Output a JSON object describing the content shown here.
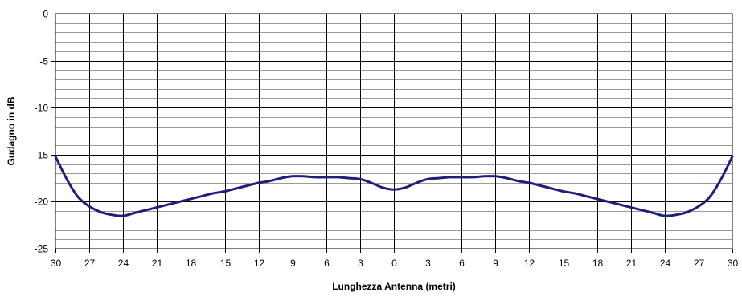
{
  "chart_data": {
    "type": "line",
    "title": "",
    "xlabel": "Lunghezza Antenna (metri)",
    "ylabel": "Gudagno in dB",
    "x_tick_labels": [
      "30",
      "27",
      "24",
      "21",
      "18",
      "15",
      "12",
      "9",
      "6",
      "3",
      "0",
      "3",
      "6",
      "9",
      "12",
      "15",
      "18",
      "21",
      "24",
      "27",
      "30"
    ],
    "y_ticks": [
      0,
      -5,
      -10,
      -15,
      -20,
      -25
    ],
    "ylim": [
      -25,
      0
    ],
    "grid": {
      "major": true,
      "minor": true,
      "minor_step": 1
    },
    "legend": "none",
    "series": [
      {
        "color": "#1F1F7A",
        "x": [
          -30,
          -29,
          -28,
          -27,
          -26,
          -25,
          -24,
          -23,
          -22,
          -21,
          -20,
          -19,
          -18,
          -17,
          -16,
          -15,
          -14,
          -13,
          -12,
          -11,
          -10,
          -9,
          -8,
          -7,
          -6,
          -5,
          -4,
          -3,
          -2,
          -1,
          0,
          1,
          2,
          3,
          4,
          5,
          6,
          7,
          8,
          9,
          10,
          11,
          12,
          13,
          14,
          15,
          16,
          17,
          18,
          19,
          20,
          21,
          22,
          23,
          24,
          25,
          26,
          27,
          28,
          29,
          30
        ],
        "values": [
          -15.2,
          -17.6,
          -19.5,
          -20.5,
          -21.1,
          -21.4,
          -21.5,
          -21.2,
          -20.9,
          -20.6,
          -20.3,
          -20.0,
          -19.7,
          -19.4,
          -19.1,
          -18.9,
          -18.6,
          -18.3,
          -18.0,
          -17.8,
          -17.5,
          -17.3,
          -17.3,
          -17.4,
          -17.4,
          -17.4,
          -17.5,
          -17.6,
          -18.0,
          -18.5,
          -18.7,
          -18.5,
          -18.0,
          -17.6,
          -17.5,
          -17.4,
          -17.4,
          -17.4,
          -17.3,
          -17.3,
          -17.5,
          -17.8,
          -18.0,
          -18.3,
          -18.6,
          -18.9,
          -19.1,
          -19.4,
          -19.7,
          -20.0,
          -20.3,
          -20.6,
          -20.9,
          -21.2,
          -21.5,
          -21.4,
          -21.1,
          -20.5,
          -19.5,
          -17.6,
          -15.2
        ]
      }
    ]
  }
}
